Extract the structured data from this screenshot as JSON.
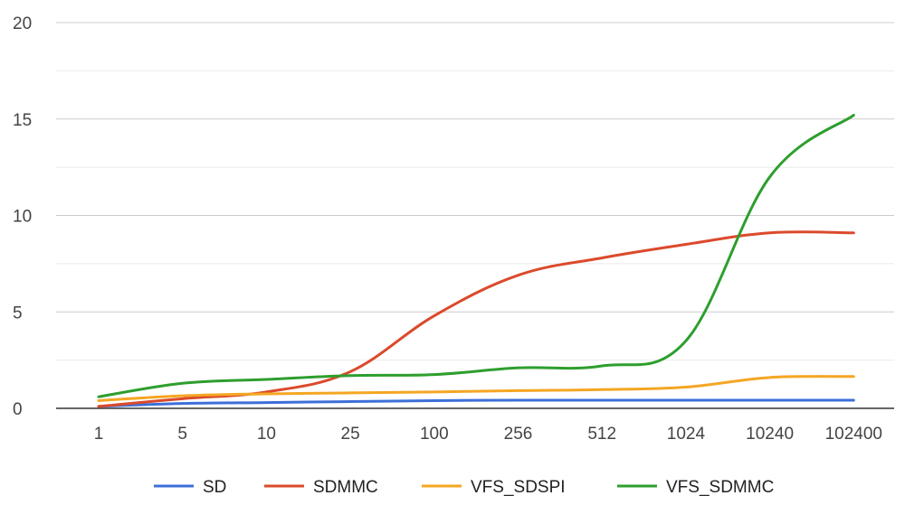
{
  "chart_data": {
    "type": "line",
    "title": "",
    "xlabel": "",
    "ylabel": "",
    "categories": [
      "1",
      "5",
      "10",
      "25",
      "100",
      "256",
      "512",
      "1024",
      "10240",
      "102400"
    ],
    "ylim": [
      0,
      20
    ],
    "yticks": [
      "0",
      "5",
      "10",
      "15",
      "20"
    ],
    "grid": true,
    "legend_position": "bottom",
    "series": [
      {
        "name": "SD",
        "color": "#3d6fd8",
        "values": [
          0.1,
          0.25,
          0.3,
          0.35,
          0.4,
          0.42,
          0.42,
          0.42,
          0.42,
          0.42
        ]
      },
      {
        "name": "SDMMC",
        "color": "#db4a2b",
        "values": [
          0.1,
          0.5,
          0.85,
          1.9,
          4.8,
          6.9,
          7.8,
          8.5,
          9.1,
          9.1
        ]
      },
      {
        "name": "VFS_SDSPI",
        "color": "#f5a623",
        "values": [
          0.4,
          0.65,
          0.75,
          0.8,
          0.85,
          0.92,
          0.97,
          1.1,
          1.6,
          1.65
        ]
      },
      {
        "name": "VFS_SDMMC",
        "color": "#2e9e2e",
        "values": [
          0.6,
          1.3,
          1.5,
          1.7,
          1.75,
          2.1,
          2.2,
          3.5,
          12,
          15.2
        ]
      }
    ]
  }
}
